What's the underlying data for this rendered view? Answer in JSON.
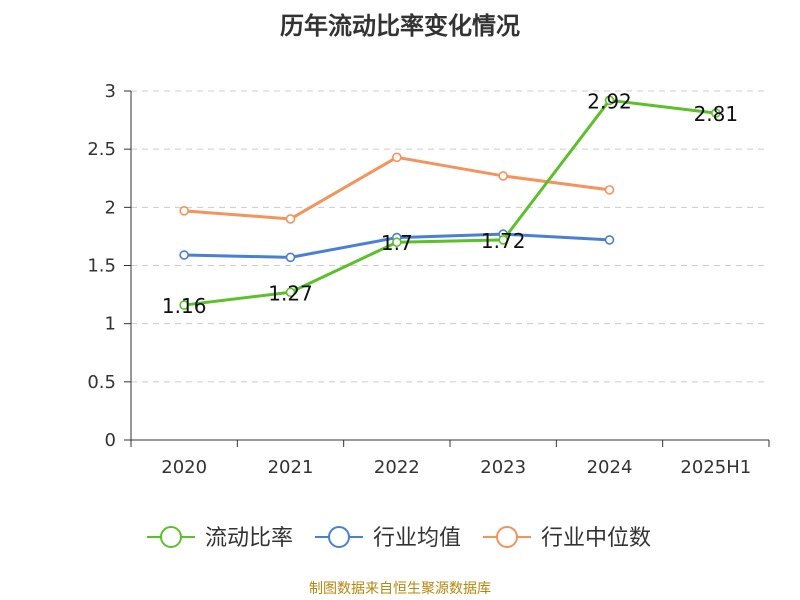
{
  "title": "历年流动比率变化情况",
  "source": "制图数据来自恒生聚源数据库",
  "chart_data": {
    "type": "line",
    "categories": [
      "2020",
      "2021",
      "2022",
      "2023",
      "2024",
      "2025H1"
    ],
    "ylim": [
      0,
      3
    ],
    "yticks": [
      0,
      0.5,
      1,
      1.5,
      2,
      2.5,
      3
    ],
    "grid": true,
    "legend_position": "bottom",
    "series": [
      {
        "name": "流动比率",
        "color": "#5cc02a",
        "values": [
          1.16,
          1.27,
          1.7,
          1.72,
          2.92,
          2.81
        ],
        "labels": [
          "1.16",
          "1.27",
          "1.7",
          "1.72",
          "2.92",
          "2.81"
        ]
      },
      {
        "name": "行业均值",
        "color": "#4a7fd6",
        "values": [
          1.59,
          1.57,
          1.74,
          1.77,
          1.72,
          null
        ]
      },
      {
        "name": "行业中位数",
        "color": "#f4935c",
        "values": [
          1.97,
          1.9,
          2.43,
          2.27,
          2.15,
          null
        ]
      }
    ]
  }
}
